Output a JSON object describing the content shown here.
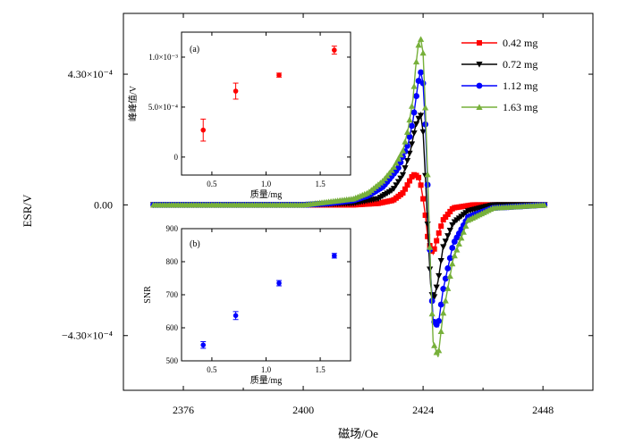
{
  "chart_data": [
    {
      "type": "line",
      "xlabel": "磁场/Oe",
      "ylabel": "ESR/V",
      "xlim": [
        2364,
        2458
      ],
      "ylim": [
        -0.00061,
        0.00063
      ],
      "xticks": [
        2376,
        2400,
        2424,
        2448
      ],
      "xtick_labels": [
        "2376",
        "2400",
        "2424",
        "2448"
      ],
      "yticks": [
        0.00043,
        0,
        -0.00043
      ],
      "ytick_labels": [
        "4.30×10⁻⁴",
        "0.00",
        "−4.30×10⁻⁴"
      ],
      "legend_position": "top-right",
      "series": [
        {
          "name": "0.42 mg",
          "color": "#ff0000",
          "marker": "square",
          "x": [
            2370,
            2380,
            2390,
            2400,
            2410,
            2415,
            2418,
            2420,
            2421,
            2422,
            2423,
            2423.5,
            2424,
            2424.5,
            2425,
            2426,
            2427,
            2428,
            2430,
            2434,
            2440,
            2448.5
          ],
          "values": [
            0,
            0,
            0,
            0,
            0.0,
            5e-06,
            1.5e-05,
            4e-05,
            7e-05,
            0.0001,
            9.5e-05,
            7e-05,
            2e-05,
            -4e-05,
            -0.00012,
            -0.00016,
            -0.0001,
            -5e-05,
            -1e-05,
            0,
            0,
            0
          ]
        },
        {
          "name": "0.72 mg",
          "color": "#000000",
          "marker": "triangle-down",
          "x": [
            2370,
            2380,
            2390,
            2400,
            2410,
            2415,
            2418,
            2420,
            2421.5,
            2422.5,
            2423.5,
            2424,
            2424.5,
            2425,
            2425.5,
            2426,
            2427,
            2428,
            2430,
            2433,
            2438,
            2448.5
          ],
          "values": [
            0,
            0,
            0,
            0,
            5e-06,
            2e-05,
            5e-05,
            0.0001,
            0.00018,
            0.00026,
            0.0003,
            0.00024,
            8e-05,
            -0.0001,
            -0.00026,
            -0.00032,
            -0.00025,
            -0.00014,
            -6e-05,
            -2e-05,
            0,
            0
          ]
        },
        {
          "name": "1.12 mg",
          "color": "#0000ff",
          "marker": "circle",
          "x": [
            2370,
            2380,
            2390,
            2400,
            2405,
            2410,
            2413,
            2416,
            2419,
            2421,
            2422,
            2423,
            2423.5,
            2424,
            2424.5,
            2425,
            2425.5,
            2426,
            2427,
            2428,
            2430,
            2433,
            2438,
            2448.5
          ],
          "values": [
            0,
            0,
            0,
            0,
            5e-06,
            1.5e-05,
            3e-05,
            6e-05,
            0.00012,
            0.0002,
            0.00028,
            0.0004,
            0.00044,
            0.0004,
            0.00025,
            2e-05,
            -0.00022,
            -0.00038,
            -0.0004,
            -0.00028,
            -0.00013,
            -4e-05,
            -1e-05,
            0
          ]
        },
        {
          "name": "1.63 mg",
          "color": "#77b03a",
          "marker": "triangle-up",
          "x": [
            2370,
            2380,
            2390,
            2400,
            2405,
            2410,
            2413,
            2416,
            2418,
            2420,
            2421,
            2422,
            2422.5,
            2423,
            2423.5,
            2424,
            2424.5,
            2425,
            2425.5,
            2426,
            2427,
            2428,
            2430,
            2433,
            2438,
            2448.5
          ],
          "values": [
            0,
            0,
            0,
            0,
            1e-05,
            2e-05,
            4e-05,
            8e-05,
            0.00012,
            0.00018,
            0.00025,
            0.00035,
            0.00045,
            0.00052,
            0.00055,
            0.0005,
            0.0003,
            5e-05,
            -0.00022,
            -0.00045,
            -0.0005,
            -0.00036,
            -0.00018,
            -5e-05,
            -1e-05,
            0
          ]
        }
      ]
    },
    {
      "type": "scatter",
      "inset": "(a)",
      "xlabel": "质量/mg",
      "ylabel": "峰峰值/V",
      "xlim": [
        0.22,
        1.78
      ],
      "ylim": [
        -0.00018,
        0.00125
      ],
      "xticks": [
        0.5,
        1.0,
        1.5
      ],
      "xtick_labels": [
        "0.5",
        "1.0",
        "1.5"
      ],
      "yticks": [
        0,
        0.0005,
        0.001
      ],
      "ytick_labels": [
        "0",
        "5.0×10⁻⁴",
        "1.0×10⁻³"
      ],
      "color": "#ff0000",
      "x": [
        0.42,
        0.72,
        1.12,
        1.63
      ],
      "values": [
        0.00027,
        0.00066,
        0.00082,
        0.00107
      ],
      "errors": [
        0.00011,
        8e-05,
        2e-05,
        4e-05
      ]
    },
    {
      "type": "scatter",
      "inset": "(b)",
      "xlabel": "质量/mg",
      "ylabel": "SNR",
      "xlim": [
        0.22,
        1.78
      ],
      "ylim": [
        500,
        900
      ],
      "xticks": [
        0.5,
        1.0,
        1.5
      ],
      "xtick_labels": [
        "0.5",
        "1.0",
        "1.5"
      ],
      "yticks": [
        500,
        600,
        700,
        800,
        900
      ],
      "ytick_labels": [
        "500",
        "600",
        "700",
        "800",
        "900"
      ],
      "color": "#0000ff",
      "x": [
        0.42,
        0.72,
        1.12,
        1.63
      ],
      "values": [
        548,
        637,
        735,
        818
      ],
      "errors": [
        10,
        12,
        8,
        7
      ]
    }
  ]
}
